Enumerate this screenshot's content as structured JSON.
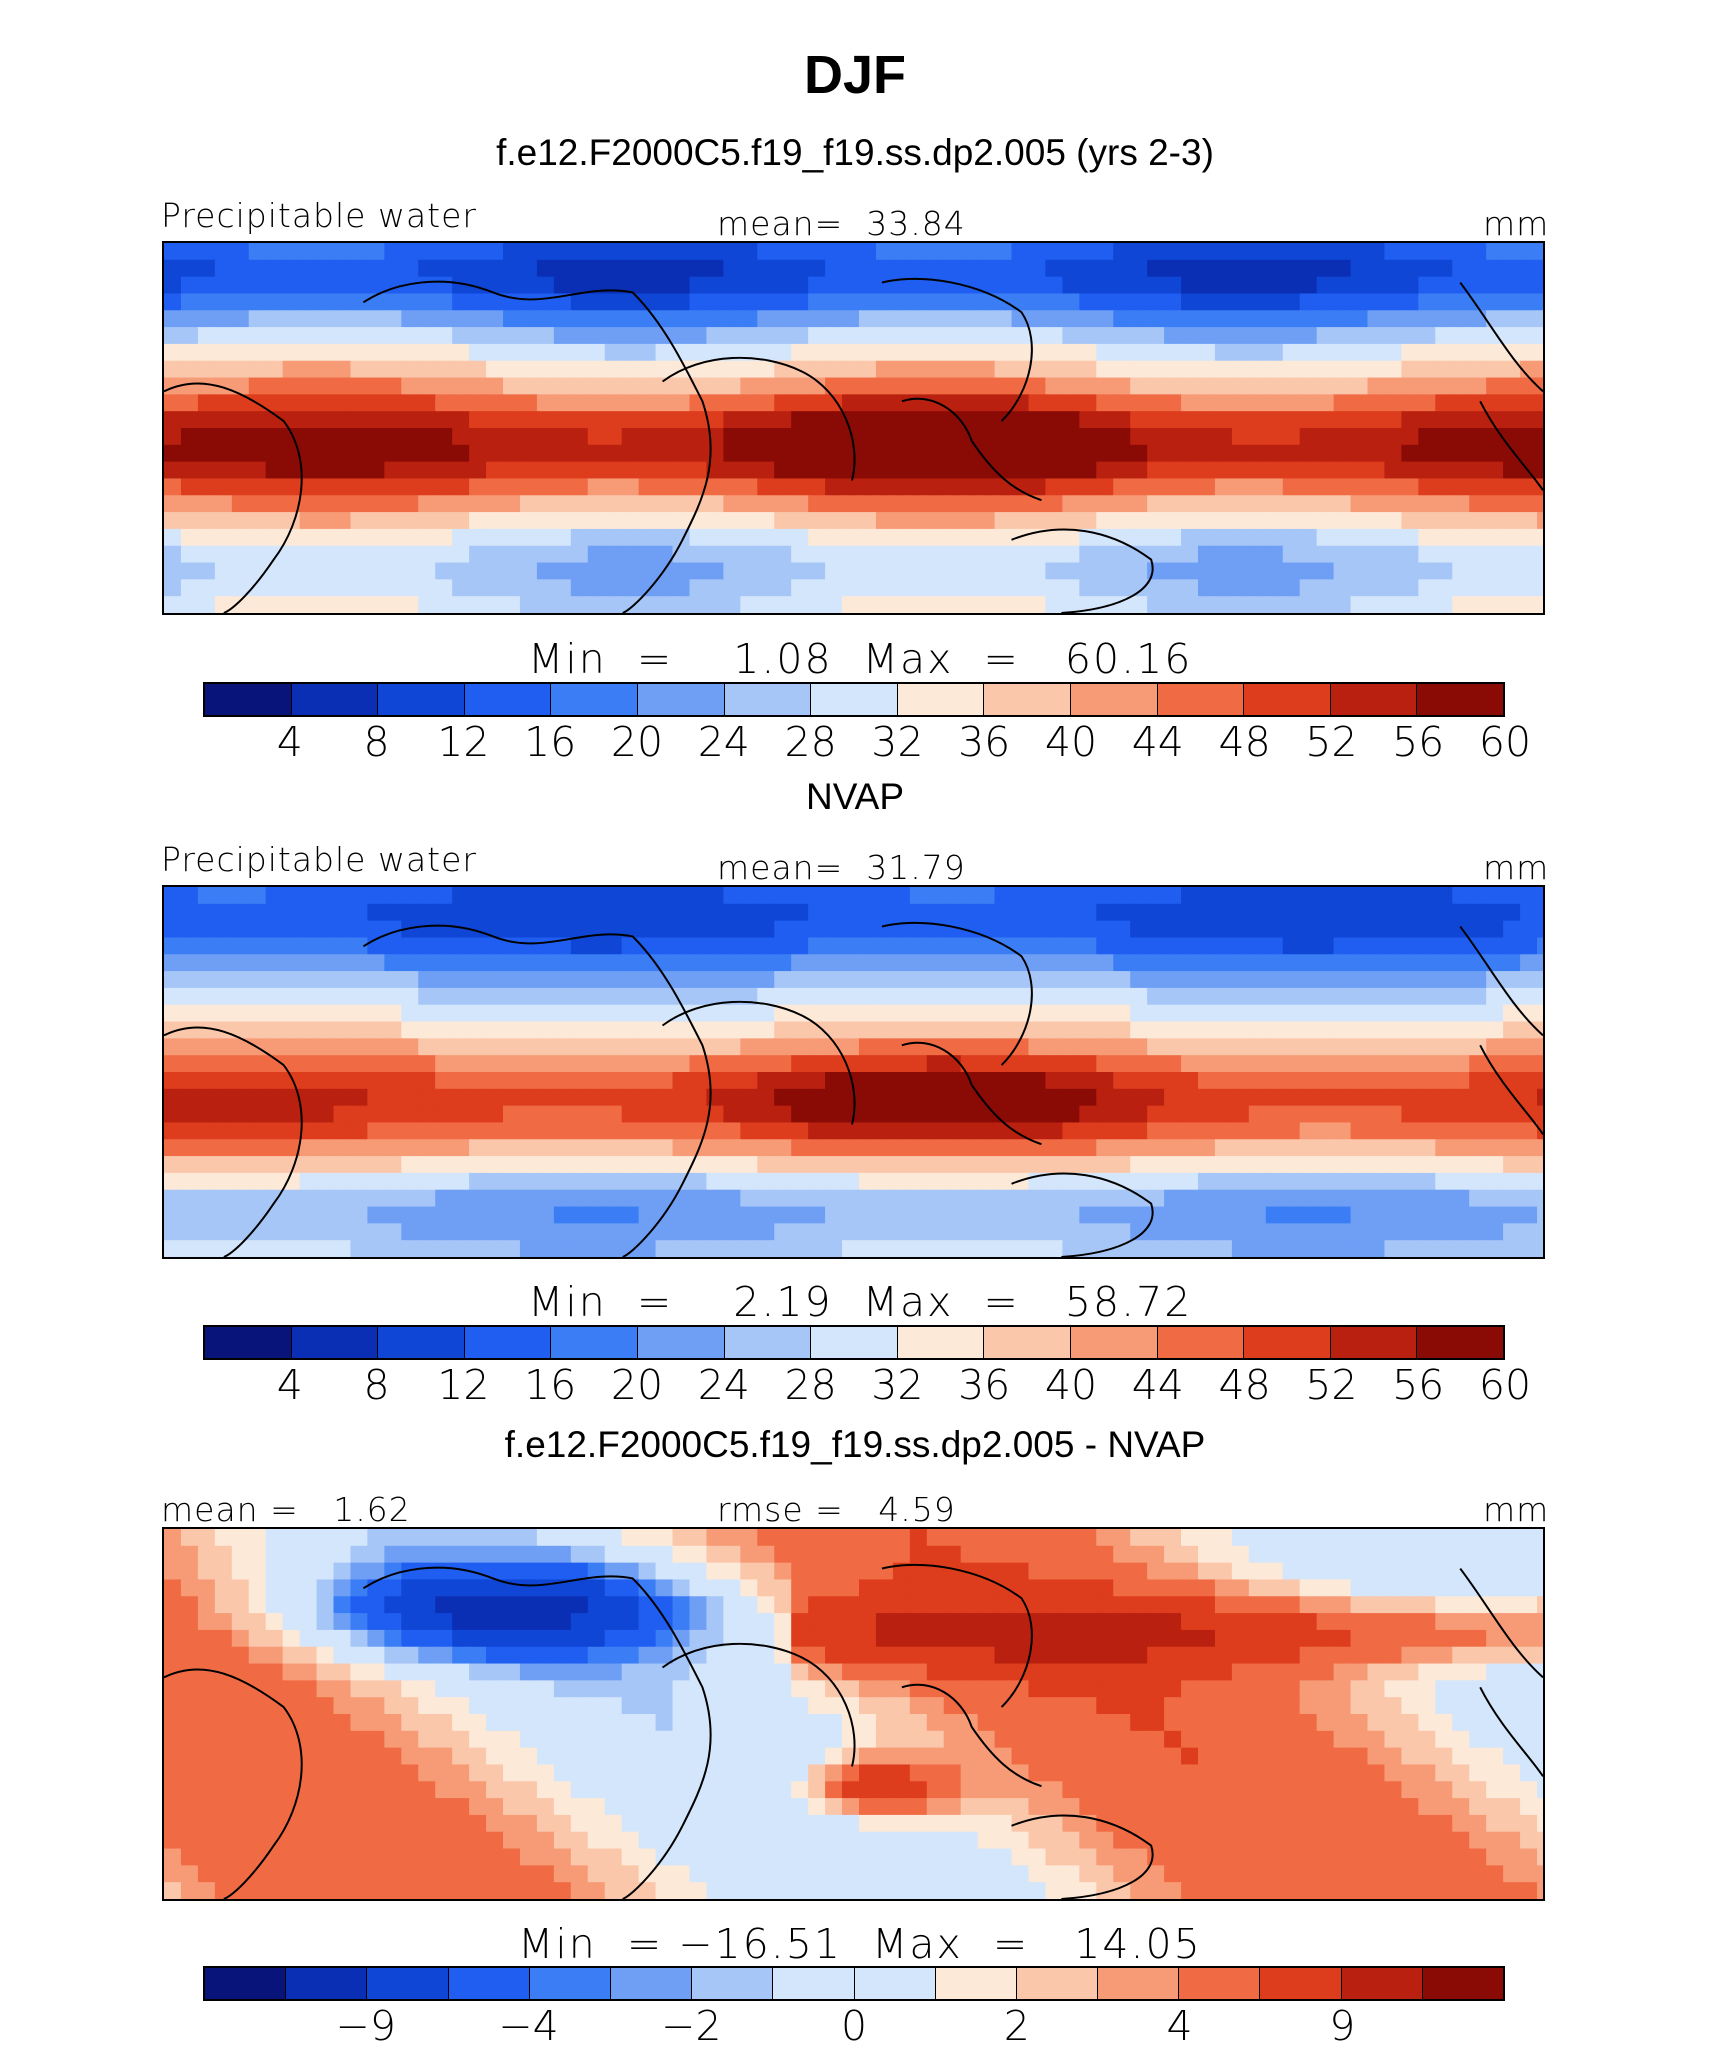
{
  "figure_title": "DJF",
  "colors": [
    "#08147a",
    "#0a2fb4",
    "#0f46d6",
    "#1f5ef0",
    "#3b7df5",
    "#6e9ff5",
    "#a6c6f7",
    "#d4e6fb",
    "#fde9d8",
    "#fbc7ab",
    "#f79b77",
    "#f06b44",
    "#dd3d1c",
    "#b9200f",
    "#8a0a06"
  ],
  "panels": [
    {
      "title": "f.e12.F2000C5.f19_f19.ss.dp2.005 (yrs 2-3)",
      "left_label": "Precipitable water",
      "center_label": "mean=  33.84",
      "right_label": "mm",
      "stats": "Min  =    1.08  Max  =   60.16",
      "ticks": [
        "4",
        "8",
        "12",
        "16",
        "20",
        "24",
        "28",
        "32",
        "36",
        "40",
        "44",
        "48",
        "52",
        "56",
        "60"
      ],
      "field": "model"
    },
    {
      "title": "NVAP",
      "left_label": "Precipitable water",
      "center_label": "mean=  31.79",
      "right_label": "mm",
      "stats": "Min  =    2.19  Max  =   58.72",
      "ticks": [
        "4",
        "8",
        "12",
        "16",
        "20",
        "24",
        "28",
        "32",
        "36",
        "40",
        "44",
        "48",
        "52",
        "56",
        "60"
      ],
      "field": "obs"
    },
    {
      "title": "f.e12.F2000C5.f19_f19.ss.dp2.005 - NVAP",
      "left_label": "mean =   1.62",
      "center_label": "rmse =   4.59",
      "right_label": "mm",
      "stats": "Min  = −16.51  Max  =   14.05",
      "ticks": [
        "−9",
        "−4",
        "−2",
        "0",
        "2",
        "4",
        "9"
      ],
      "field": "diff"
    }
  ]
}
